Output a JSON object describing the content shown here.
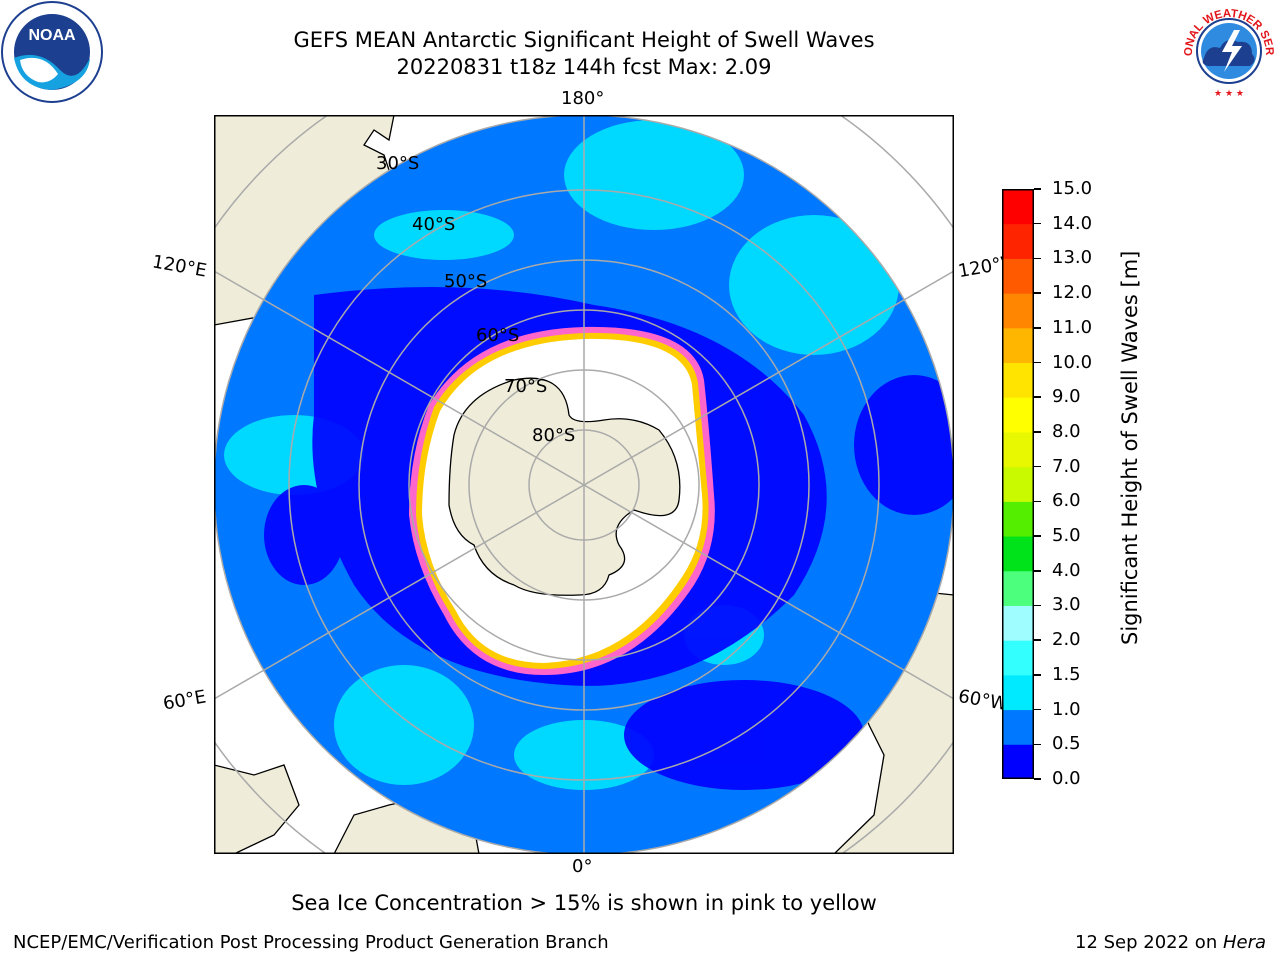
{
  "title": {
    "line1": "GEFS MEAN Antarctic Significant Height of Swell Waves",
    "line2": "20220831 t18z 144h fcst   Max: 2.09"
  },
  "logos": {
    "left": "noaa-logo",
    "left_text": "NOAA",
    "right": "nws-logo",
    "right_text": "NATIONAL WEATHER SERVICE"
  },
  "map": {
    "projection": "south-polar-stereographic",
    "longitude_labels": {
      "top": "180°",
      "bottom": "0°",
      "upper_left": "120°E",
      "lower_left": "60°E",
      "upper_right": "120°W",
      "lower_right": "60°W"
    },
    "latitude_labels": [
      "30°S",
      "40°S",
      "50°S",
      "60°S",
      "70°S",
      "80°S"
    ],
    "land_color": "#efedd9",
    "ocean_colors": [
      "#0000ff",
      "#0078ff",
      "#00eaff"
    ],
    "ice_colors": [
      "#ff66cc",
      "#ffcc00"
    ]
  },
  "colorbar": {
    "label": "Significant Height of Swell Waves [m]",
    "ticks": [
      "0.0",
      "0.5",
      "1.0",
      "1.5",
      "2.0",
      "3.0",
      "4.0",
      "5.0",
      "6.0",
      "7.0",
      "8.0",
      "9.0",
      "10.0",
      "11.0",
      "12.0",
      "13.0",
      "14.0",
      "15.0"
    ],
    "colors": [
      "#0000ff",
      "#0078ff",
      "#00eaff",
      "#33ffff",
      "#9ffcff",
      "#4cff7c",
      "#00e21a",
      "#54ef00",
      "#cafa00",
      "#e8f800",
      "#ffff00",
      "#ffe400",
      "#ffb600",
      "#ff8600",
      "#ff5a00",
      "#ff2400",
      "#ff0000"
    ]
  },
  "ice_note": "Sea Ice Concentration > 15% is shown in pink to yellow",
  "footer": {
    "credit": "NCEP/EMC/Verification Post Processing Product Generation Branch",
    "date": "12 Sep 2022 on ",
    "machine": "Hera"
  }
}
